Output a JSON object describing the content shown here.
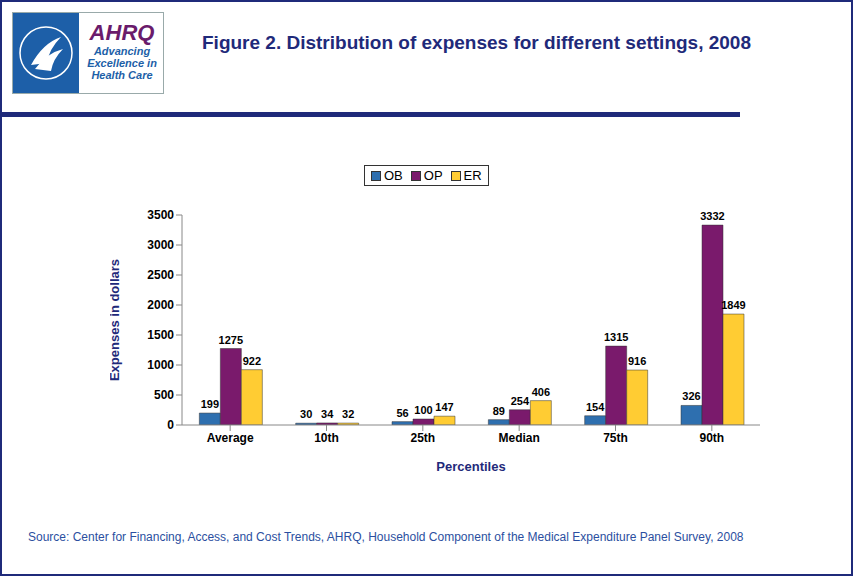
{
  "chart_data": {
    "type": "bar",
    "title": "Figure 2. Distribution of expenses for different settings, 2008",
    "x_label": "Percentiles",
    "y_label": "Expenses in dollars",
    "annotations": [
      "Source: Center for Financing, Access, and Cost Trends, AHRQ, Household Component of the Medical Expenditure Panel Survey, 2008",
      "AHRQ",
      "Advancing Excellence in Health Care"
    ],
    "categories": [
      "Average",
      "10th",
      "25th",
      "Median",
      "75th",
      "90th"
    ],
    "series": [
      {
        "name": "OB",
        "color": "#2E6FAF",
        "values": [
          199,
          30,
          56,
          89,
          154,
          326
        ]
      },
      {
        "name": "OP",
        "color": "#7A1A6C",
        "values": [
          1275,
          34,
          100,
          254,
          1315,
          3332
        ]
      },
      {
        "name": "ER",
        "color": "#FFCC33",
        "values": [
          922,
          32,
          147,
          406,
          916,
          1849
        ]
      }
    ],
    "ylim": [
      0,
      3500
    ],
    "yticks": [
      0,
      500,
      1000,
      1500,
      2000,
      2500,
      3000,
      3500
    ],
    "grid": false,
    "data_labels": true,
    "legend": "top"
  }
}
